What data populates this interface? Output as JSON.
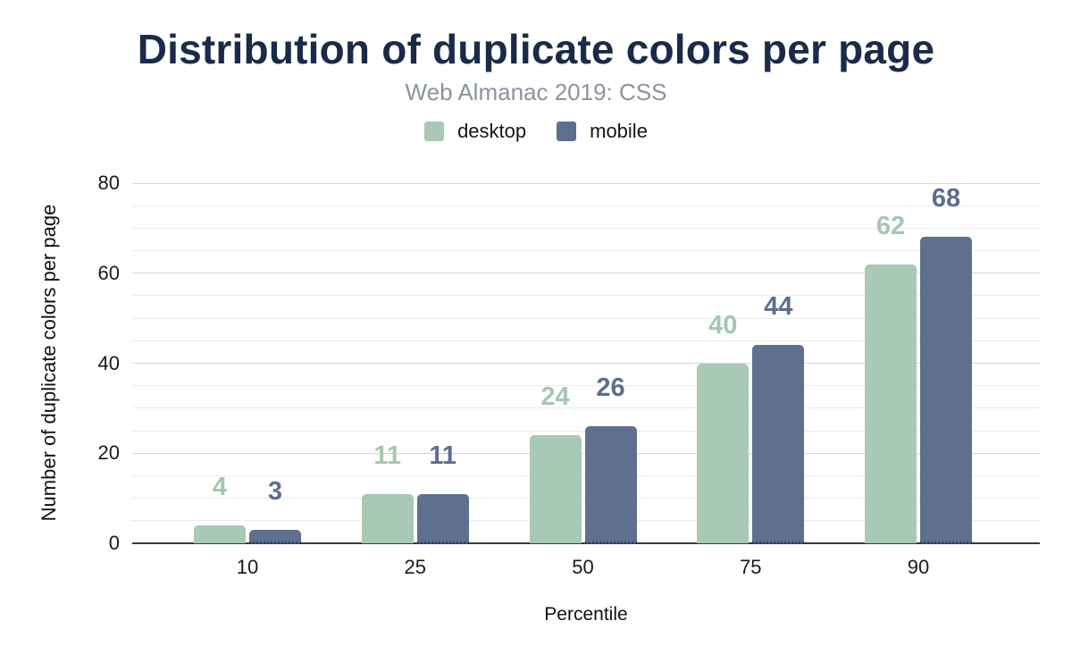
{
  "header": {
    "title": "Distribution of duplicate colors per page",
    "subtitle": "Web Almanac 2019: CSS"
  },
  "legend": {
    "items": [
      {
        "label": "desktop",
        "color": "#a7c9b5"
      },
      {
        "label": "mobile",
        "color": "#5e708d"
      }
    ]
  },
  "chart_data": {
    "type": "bar",
    "title": "Distribution of duplicate colors per page",
    "subtitle": "Web Almanac 2019: CSS",
    "categories": [
      "10",
      "25",
      "50",
      "75",
      "90"
    ],
    "series": [
      {
        "name": "desktop",
        "color": "#a7c9b5",
        "label_color": "#a4c7b2",
        "values": [
          4,
          11,
          24,
          40,
          62
        ]
      },
      {
        "name": "mobile",
        "color": "#5e708d",
        "label_color": "#5d6e8c",
        "values": [
          3,
          11,
          26,
          44,
          68
        ]
      }
    ],
    "xlabel": "Percentile",
    "ylabel": "Number of duplicate colors per page",
    "ylim": [
      0,
      80
    ],
    "yticks": [
      0,
      20,
      40,
      60,
      80
    ],
    "minor_grid_step": 5,
    "grid": true,
    "legend_position": "top",
    "bar_value_labels": true
  },
  "colors": {
    "title": "#1a2b49",
    "subtitle": "#8b93a0",
    "axis_text": "#1a1a1a",
    "grid_major": "#d5d5d5",
    "grid_minor": "#ececec",
    "baseline": "#3a3a3a",
    "background": "#ffffff"
  }
}
